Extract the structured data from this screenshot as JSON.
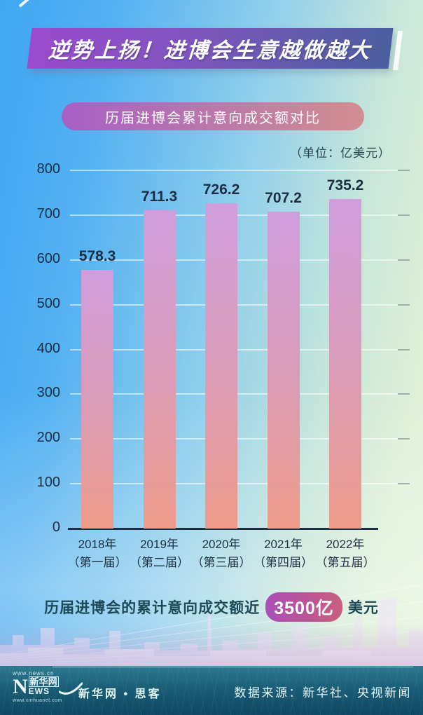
{
  "banner": {
    "title": "逆势上扬！进博会生意越做越大"
  },
  "subtitle": "历届进博会累计意向成交额对比",
  "unit_label": "（单位：亿美元）",
  "chart_data": {
    "type": "bar",
    "title": "历届进博会累计意向成交额对比",
    "unit": "亿美元",
    "categories": [
      "2018年（第一届）",
      "2019年（第二届）",
      "2020年（第三届）",
      "2021年（第四届）",
      "2022年（第五届）"
    ],
    "category_lines": [
      [
        "2018年",
        "（第一届）"
      ],
      [
        "2019年",
        "（第二届）"
      ],
      [
        "2020年",
        "（第三届）"
      ],
      [
        "2021年",
        "（第四届）"
      ],
      [
        "2022年",
        "（第五届）"
      ]
    ],
    "values": [
      578.3,
      711.3,
      726.2,
      707.2,
      735.2
    ],
    "value_labels": [
      "578.3",
      "711.3",
      "726.2",
      "707.2",
      "735.2"
    ],
    "ylim": [
      0,
      800
    ],
    "yticks": [
      0,
      100,
      200,
      300,
      400,
      500,
      600,
      700,
      800
    ],
    "grid": "horizontal",
    "legend": "none",
    "bar_gradient_top": "#d09edd",
    "bar_gradient_bottom": "#ee9b89"
  },
  "summary": {
    "prefix": "历届进博会的累计意向成交额近",
    "highlight": "3500亿",
    "suffix": "美元"
  },
  "footer": {
    "logo": {
      "url_top": "www.news.cn",
      "n": "N",
      "cn": "新华网",
      "ews": "EWS",
      "url_bottom": "www.xinhuanet.com"
    },
    "brand": "新华网 • 思客",
    "source": "数据来源：新华社、央视新闻"
  },
  "colors": {
    "banner_gradient": [
      "#9c4bce",
      "#4a5f9f"
    ],
    "subtitle_gradient": [
      "#a75fc6",
      "#d18e90"
    ],
    "highlight_gradient": [
      "#a94fb8",
      "#c9607e"
    ],
    "axis_text": "#1c2e42",
    "summary_text": "#1d4a57",
    "footer_bg": "#14536d"
  }
}
